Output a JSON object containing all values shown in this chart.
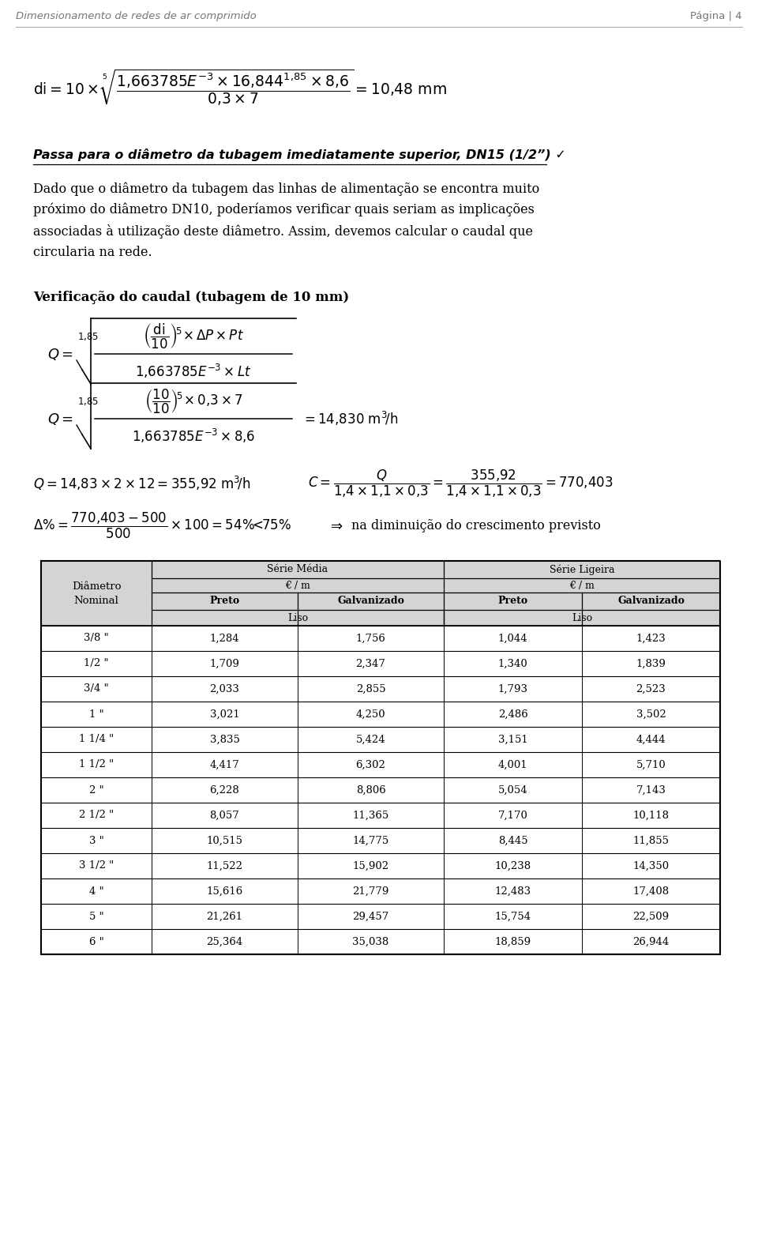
{
  "header_left": "Dimensionamento de redes de ar comprimido",
  "header_right": "Página | 4",
  "bg_color": "#ffffff",
  "text_color": "#000000",
  "grey_text": "#888888",
  "table_data": [
    [
      "3/8 \"",
      "1,284",
      "1,756",
      "1,044",
      "1,423"
    ],
    [
      "1/2 \"",
      "1,709",
      "2,347",
      "1,340",
      "1,839"
    ],
    [
      "3/4 \"",
      "2,033",
      "2,855",
      "1,793",
      "2,523"
    ],
    [
      "1 \"",
      "3,021",
      "4,250",
      "2,486",
      "3,502"
    ],
    [
      "1 1/4 \"",
      "3,835",
      "5,424",
      "3,151",
      "4,444"
    ],
    [
      "1 1/2 \"",
      "4,417",
      "6,302",
      "4,001",
      "5,710"
    ],
    [
      "2 \"",
      "6,228",
      "8,806",
      "5,054",
      "7,143"
    ],
    [
      "2 1/2 \"",
      "8,057",
      "11,365",
      "7,170",
      "10,118"
    ],
    [
      "3 \"",
      "10,515",
      "14,775",
      "8,445",
      "11,855"
    ],
    [
      "3 1/2 \"",
      "11,522",
      "15,902",
      "10,238",
      "14,350"
    ],
    [
      "4 \"",
      "15,616",
      "21,779",
      "12,483",
      "17,408"
    ],
    [
      "5 \"",
      "21,261",
      "29,457",
      "15,754",
      "22,509"
    ],
    [
      "6 \"",
      "25,364",
      "35,038",
      "18,859",
      "26,944"
    ]
  ]
}
